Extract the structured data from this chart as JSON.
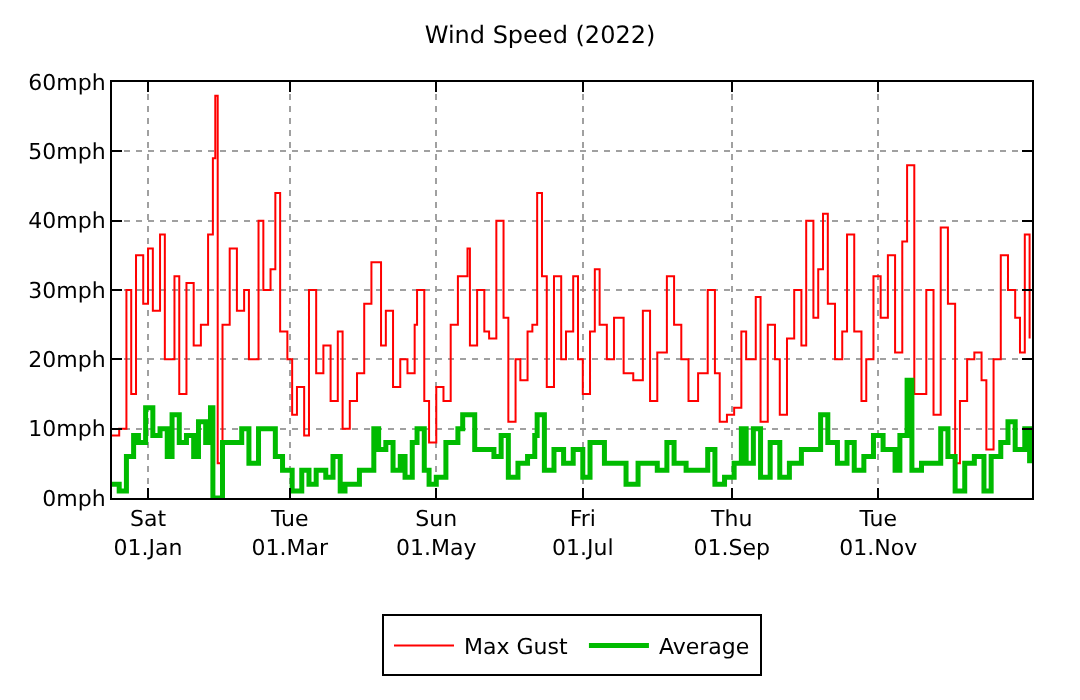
{
  "chart_data": {
    "type": "step",
    "title": "Wind Speed (2022)",
    "xlim": [
      "2021-12-17",
      "2023-01-04"
    ],
    "xticks": [
      {
        "value": "2022-01-01",
        "label": "Sat\n01.Jan"
      },
      {
        "value": "2022-03-01",
        "label": "Tue\n01.Mar"
      },
      {
        "value": "2022-05-01",
        "label": "Sun\n01.May"
      },
      {
        "value": "2022-07-01",
        "label": "Fri\n01.Jul"
      },
      {
        "value": "2022-09-01",
        "label": "Thu\n01.Sep"
      },
      {
        "value": "2022-11-01",
        "label": "Tue\n01.Nov"
      }
    ],
    "ylim": [
      0,
      60
    ],
    "yticks": [
      {
        "value": 0,
        "label": "0mph"
      },
      {
        "value": 10,
        "label": "10mph"
      },
      {
        "value": 20,
        "label": "20mph"
      },
      {
        "value": 30,
        "label": "30mph"
      },
      {
        "value": 40,
        "label": "40mph"
      },
      {
        "value": 50,
        "label": "50mph"
      },
      {
        "value": 60,
        "label": "60mph"
      }
    ],
    "grid": true,
    "legend": "bottom",
    "marker": "none",
    "line_style": "solid",
    "series": [
      {
        "name": "Max Gust",
        "color": "#ff0000",
        "x": [
          "2021-12-17",
          "2021-12-20",
          "2021-12-23",
          "2021-12-25",
          "2021-12-27",
          "2021-12-30",
          "2022-01-01",
          "2022-01-03",
          "2022-01-06",
          "2022-01-08",
          "2022-01-12",
          "2022-01-14",
          "2022-01-17",
          "2022-01-20",
          "2022-01-23",
          "2022-01-26",
          "2022-01-28",
          "2022-01-29",
          "2022-01-30",
          "2022-02-01",
          "2022-02-04",
          "2022-02-07",
          "2022-02-10",
          "2022-02-12",
          "2022-02-16",
          "2022-02-18",
          "2022-02-21",
          "2022-02-23",
          "2022-02-25",
          "2022-02-28",
          "2022-03-02",
          "2022-03-04",
          "2022-03-07",
          "2022-03-09",
          "2022-03-12",
          "2022-03-15",
          "2022-03-18",
          "2022-03-21",
          "2022-03-23",
          "2022-03-26",
          "2022-03-29",
          "2022-04-01",
          "2022-04-04",
          "2022-04-08",
          "2022-04-10",
          "2022-04-13",
          "2022-04-16",
          "2022-04-19",
          "2022-04-22",
          "2022-04-23",
          "2022-04-26",
          "2022-04-28",
          "2022-05-01",
          "2022-05-04",
          "2022-05-07",
          "2022-05-10",
          "2022-05-14",
          "2022-05-15",
          "2022-05-18",
          "2022-05-21",
          "2022-05-23",
          "2022-05-26",
          "2022-05-29",
          "2022-05-31",
          "2022-06-03",
          "2022-06-05",
          "2022-06-08",
          "2022-06-10",
          "2022-06-12",
          "2022-06-14",
          "2022-06-16",
          "2022-06-19",
          "2022-06-22",
          "2022-06-24",
          "2022-06-27",
          "2022-06-29",
          "2022-07-01",
          "2022-07-04",
          "2022-07-06",
          "2022-07-08",
          "2022-07-11",
          "2022-07-14",
          "2022-07-18",
          "2022-07-22",
          "2022-07-26",
          "2022-07-29",
          "2022-08-01",
          "2022-08-05",
          "2022-08-08",
          "2022-08-11",
          "2022-08-14",
          "2022-08-18",
          "2022-08-22",
          "2022-08-25",
          "2022-08-27",
          "2022-08-30",
          "2022-09-02",
          "2022-09-05",
          "2022-09-07",
          "2022-09-11",
          "2022-09-13",
          "2022-09-16",
          "2022-09-19",
          "2022-09-21",
          "2022-09-24",
          "2022-09-27",
          "2022-09-30",
          "2022-10-02",
          "2022-10-05",
          "2022-10-07",
          "2022-10-09",
          "2022-10-11",
          "2022-10-14",
          "2022-10-17",
          "2022-10-19",
          "2022-10-22",
          "2022-10-25",
          "2022-10-27",
          "2022-10-30",
          "2022-11-02",
          "2022-11-05",
          "2022-11-08",
          "2022-11-11",
          "2022-11-13",
          "2022-11-16",
          "2022-11-19",
          "2022-11-21",
          "2022-11-24",
          "2022-11-27",
          "2022-11-30",
          "2022-12-03",
          "2022-12-05",
          "2022-12-08",
          "2022-12-11",
          "2022-12-14",
          "2022-12-16",
          "2022-12-19",
          "2022-12-22",
          "2022-12-25",
          "2022-12-28",
          "2022-12-30",
          "2023-01-01",
          "2023-01-03"
        ],
        "values": [
          9,
          10,
          30,
          15,
          35,
          28,
          36,
          27,
          38,
          20,
          32,
          15,
          31,
          22,
          25,
          38,
          49,
          58,
          5,
          25,
          36,
          27,
          30,
          20,
          40,
          30,
          33,
          44,
          24,
          20,
          12,
          16,
          9,
          30,
          18,
          22,
          14,
          24,
          10,
          14,
          18,
          28,
          34,
          22,
          27,
          16,
          20,
          18,
          25,
          30,
          14,
          8,
          16,
          14,
          25,
          32,
          36,
          22,
          30,
          24,
          23,
          40,
          26,
          11,
          20,
          17,
          24,
          25,
          44,
          32,
          16,
          32,
          20,
          24,
          32,
          20,
          15,
          24,
          33,
          25,
          20,
          26,
          18,
          17,
          27,
          14,
          21,
          32,
          25,
          20,
          14,
          18,
          30,
          18,
          11,
          12,
          13,
          24,
          20,
          29,
          11,
          25,
          20,
          12,
          23,
          30,
          22,
          40,
          26,
          33,
          41,
          28,
          20,
          24,
          38,
          24,
          14,
          20,
          32,
          26,
          35,
          21,
          37,
          48,
          15,
          15,
          30,
          12,
          39,
          28,
          5,
          14,
          20,
          21,
          17,
          7,
          20,
          35,
          30,
          26,
          21,
          38,
          23
        ]
      },
      {
        "name": "Average",
        "color": "#00bb00",
        "x": [
          "2021-12-17",
          "2021-12-20",
          "2021-12-23",
          "2021-12-26",
          "2021-12-28",
          "2021-12-31",
          "2022-01-03",
          "2022-01-06",
          "2022-01-09",
          "2022-01-11",
          "2022-01-14",
          "2022-01-17",
          "2022-01-20",
          "2022-01-22",
          "2022-01-25",
          "2022-01-27",
          "2022-01-28",
          "2022-01-31",
          "2022-02-01",
          "2022-02-05",
          "2022-02-09",
          "2022-02-12",
          "2022-02-16",
          "2022-02-20",
          "2022-02-23",
          "2022-02-26",
          "2022-03-02",
          "2022-03-06",
          "2022-03-09",
          "2022-03-12",
          "2022-03-16",
          "2022-03-19",
          "2022-03-22",
          "2022-03-24",
          "2022-03-30",
          "2022-04-05",
          "2022-04-07",
          "2022-04-10",
          "2022-04-13",
          "2022-04-16",
          "2022-04-18",
          "2022-04-21",
          "2022-04-23",
          "2022-04-26",
          "2022-04-28",
          "2022-05-01",
          "2022-05-05",
          "2022-05-10",
          "2022-05-12",
          "2022-05-17",
          "2022-05-21",
          "2022-05-25",
          "2022-05-28",
          "2022-05-31",
          "2022-06-04",
          "2022-06-08",
          "2022-06-11",
          "2022-06-12",
          "2022-06-15",
          "2022-06-19",
          "2022-06-23",
          "2022-06-27",
          "2022-07-01",
          "2022-07-04",
          "2022-07-07",
          "2022-07-10",
          "2022-07-14",
          "2022-07-19",
          "2022-07-24",
          "2022-07-28",
          "2022-08-01",
          "2022-08-05",
          "2022-08-08",
          "2022-08-13",
          "2022-08-18",
          "2022-08-22",
          "2022-08-25",
          "2022-08-29",
          "2022-09-02",
          "2022-09-05",
          "2022-09-07",
          "2022-09-10",
          "2022-09-13",
          "2022-09-17",
          "2022-09-21",
          "2022-09-25",
          "2022-09-30",
          "2022-10-04",
          "2022-10-08",
          "2022-10-11",
          "2022-10-15",
          "2022-10-19",
          "2022-10-22",
          "2022-10-26",
          "2022-10-30",
          "2022-11-03",
          "2022-11-08",
          "2022-11-10",
          "2022-11-13",
          "2022-11-15",
          "2022-11-19",
          "2022-11-23",
          "2022-11-27",
          "2022-11-30",
          "2022-12-03",
          "2022-12-07",
          "2022-12-11",
          "2022-12-15",
          "2022-12-18",
          "2022-12-22",
          "2022-12-25",
          "2022-12-28",
          "2023-01-01",
          "2023-01-03"
        ],
        "values": [
          2,
          1,
          6,
          9,
          8,
          13,
          9,
          10,
          6,
          12,
          8,
          9,
          6,
          11,
          8,
          13,
          0,
          0,
          8,
          8,
          10,
          5,
          10,
          10,
          6,
          4,
          1,
          4,
          2,
          4,
          3,
          6,
          1,
          2,
          4,
          10,
          7,
          8,
          4,
          6,
          3,
          8,
          10,
          4,
          2,
          3,
          8,
          10,
          12,
          7,
          7,
          6,
          9,
          3,
          5,
          6,
          9,
          12,
          4,
          7,
          5,
          7,
          3,
          8,
          8,
          5,
          5,
          2,
          5,
          5,
          4,
          8,
          5,
          4,
          4,
          7,
          2,
          3,
          5,
          10,
          5,
          10,
          3,
          8,
          3,
          5,
          7,
          7,
          12,
          8,
          5,
          8,
          4,
          6,
          9,
          7,
          4,
          9,
          17,
          4,
          5,
          5,
          10,
          6,
          1,
          5,
          6,
          1,
          6,
          8,
          11,
          7,
          10,
          5
        ]
      }
    ]
  }
}
